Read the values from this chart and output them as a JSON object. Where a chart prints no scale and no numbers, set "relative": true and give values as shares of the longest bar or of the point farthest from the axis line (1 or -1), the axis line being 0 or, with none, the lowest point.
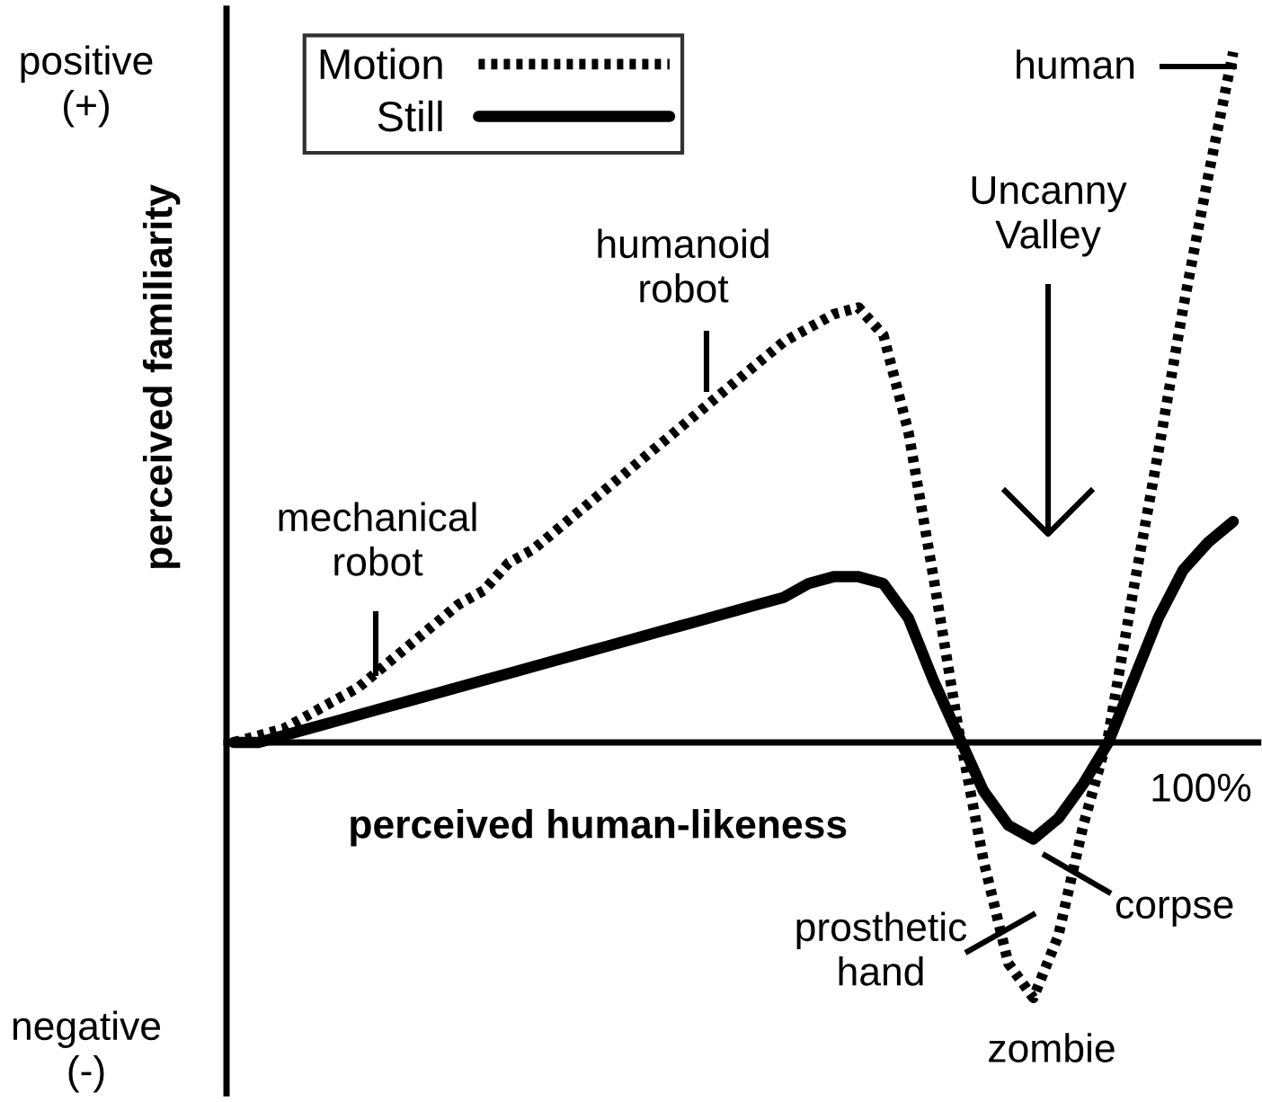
{
  "chart_data": {
    "type": "line",
    "relative": true,
    "xlabel": "perceived human-likeness",
    "ylabel": "perceived familiarity",
    "categories": [
      null,
      null,
      null,
      null,
      null,
      null,
      null,
      null,
      null,
      null,
      null,
      null,
      null,
      null,
      null,
      null,
      null,
      null,
      null,
      null,
      null,
      null,
      null,
      null,
      null,
      null,
      null,
      null,
      null,
      null,
      null,
      null,
      null,
      null,
      null,
      null,
      null,
      null,
      null,
      null,
      null
    ],
    "series": [
      {
        "name": "Motion",
        "color": "#000000",
        "line_style": "dotted",
        "values": [
          0,
          0.01,
          0.02,
          0.04,
          0.06,
          0.08,
          0.11,
          0.14,
          0.17,
          0.2,
          0.22,
          0.26,
          0.28,
          0.31,
          0.34,
          0.37,
          0.4,
          0.43,
          0.46,
          0.49,
          0.52,
          0.55,
          0.58,
          0.6,
          0.62,
          0.63,
          0.59,
          0.45,
          0.24,
          0.02,
          -0.17,
          -0.32,
          -0.37,
          -0.28,
          -0.12,
          0.01,
          0.22,
          0.42,
          0.63,
          0.82,
          1
        ]
      },
      {
        "name": "Still",
        "color": "#000000",
        "line_style": "solid",
        "values": [
          0,
          0,
          0.01,
          0.02,
          0.03,
          0.04,
          0.05,
          0.06,
          0.07,
          0.08,
          0.09,
          0.1,
          0.11,
          0.12,
          0.13,
          0.14,
          0.15,
          0.16,
          0.17,
          0.18,
          0.19,
          0.2,
          0.21,
          0.23,
          0.24,
          0.24,
          0.23,
          0.18,
          0.09,
          0.01,
          -0.07,
          -0.12,
          -0.14,
          -0.11,
          -0.06,
          0,
          0.09,
          0.18,
          0.25,
          0.29,
          0.32
        ]
      }
    ],
    "legend": "top left",
    "annotations": [
      "positive\n(+)",
      "negative\n(-)",
      "human",
      "humanoid\nrobot",
      "mechanical\nrobot",
      "Uncanny\nValley",
      "prosthetic\nhand",
      "corpse",
      "zombie",
      "100%"
    ]
  }
}
